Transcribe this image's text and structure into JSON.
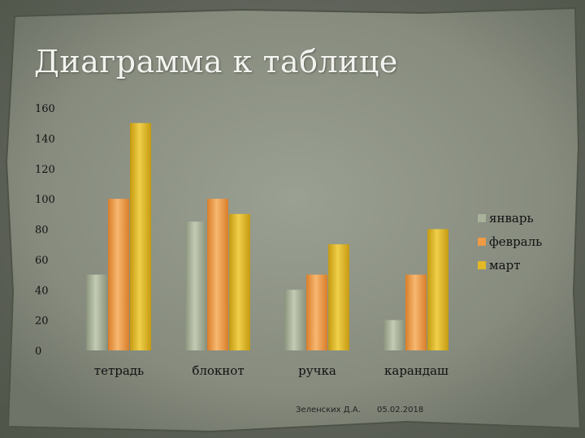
{
  "chart_data": {
    "type": "bar",
    "title": "Диаграмма к таблице",
    "categories": [
      "тетрадь",
      "блокнот",
      "ручка",
      "карандаш"
    ],
    "series": [
      {
        "name": "январь",
        "color": "#a8b19a",
        "values": [
          50,
          85,
          40,
          20
        ]
      },
      {
        "name": "февраль",
        "color": "#ef9a44",
        "values": [
          100,
          100,
          50,
          50
        ]
      },
      {
        "name": "март",
        "color": "#e2b824",
        "values": [
          150,
          90,
          70,
          80
        ]
      }
    ],
    "ylim": [
      0,
      160
    ],
    "yticks": [
      "0",
      "20",
      "40",
      "60",
      "80",
      "100",
      "120",
      "140",
      "160"
    ],
    "grid": false,
    "legend_position": "right"
  },
  "footer": {
    "author": "Зеленских Д.А.",
    "date": "05.02.2018"
  }
}
